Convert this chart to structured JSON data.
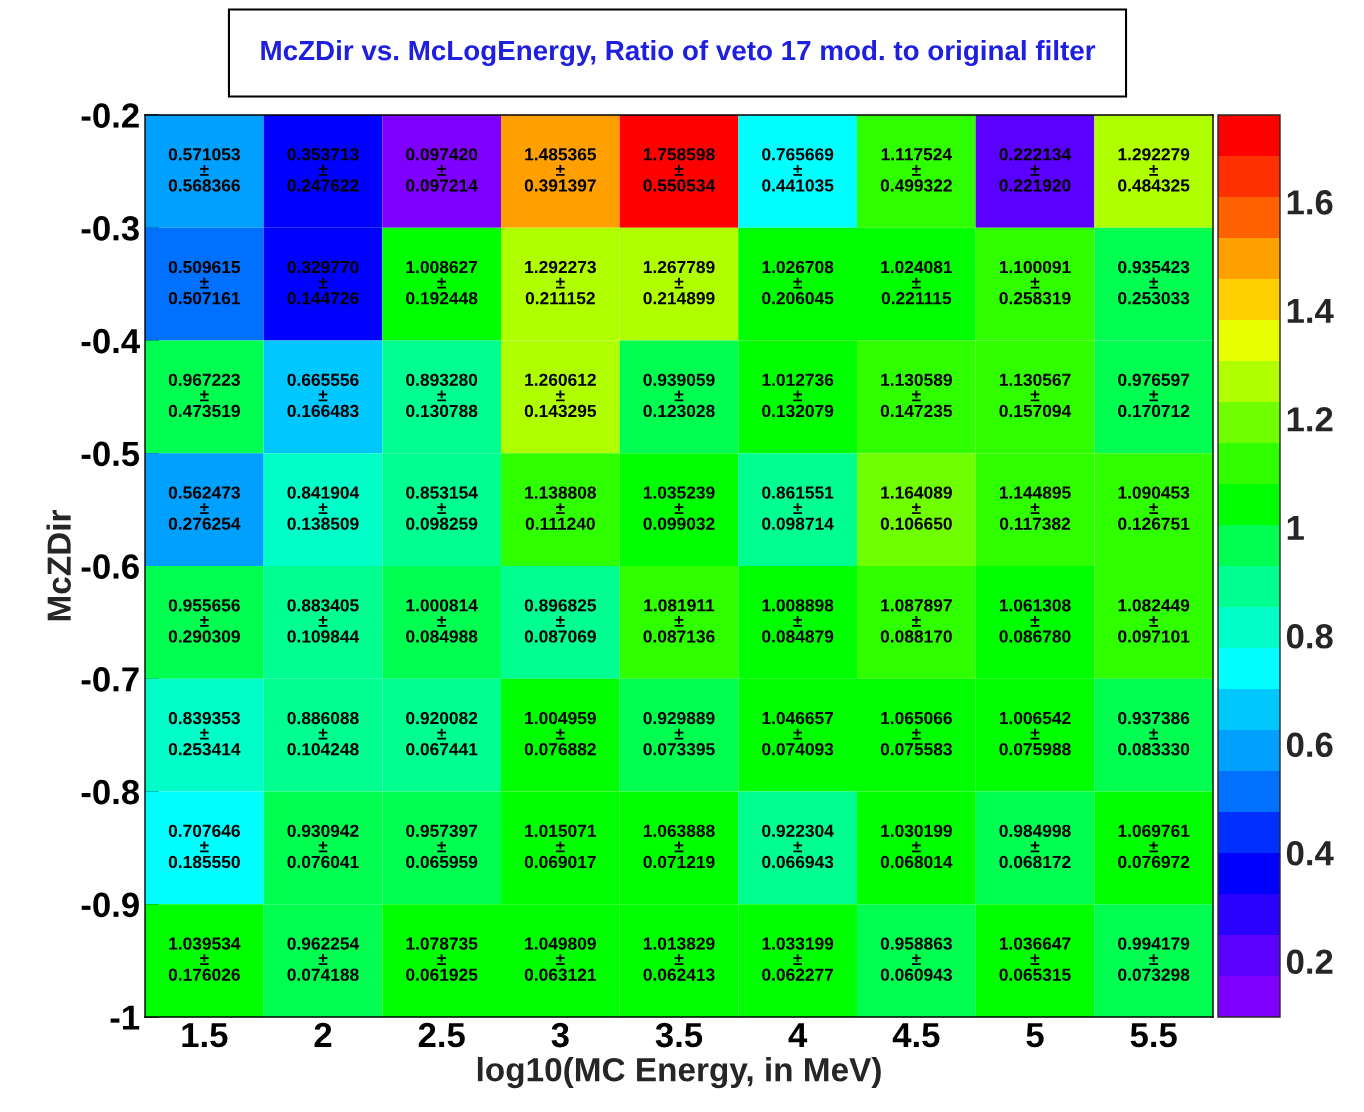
{
  "chart_data": {
    "type": "heatmap",
    "title": "McZDir vs. McLogEnergy, Ratio of veto 17 mod. to original filter",
    "xlabel": "log10(MC Energy, in MeV)",
    "ylabel": "McZDir",
    "x": [
      1.5,
      2,
      2.5,
      3,
      3.5,
      4,
      4.5,
      5,
      5.5
    ],
    "xlim": [
      1.25,
      5.75
    ],
    "xticks": [
      1.5,
      2,
      2.5,
      3,
      3.5,
      4,
      4.5,
      5,
      5.5
    ],
    "ylim": [
      -1,
      -0.2
    ],
    "yticks": [
      -1,
      -0.9,
      -0.8,
      -0.7,
      -0.6,
      -0.5,
      -0.4,
      -0.3,
      -0.2
    ],
    "clim": [
      0.097,
      1.76
    ],
    "cticks": [
      0.2,
      0.4,
      0.6,
      0.8,
      1,
      1.2,
      1.4,
      1.6
    ],
    "cells": [
      [
        0.571053,
        0.353713,
        0.09742,
        1.485365,
        1.758598,
        0.765669,
        1.117524,
        0.222134,
        1.292279
      ],
      [
        0.509615,
        0.32977,
        1.008627,
        1.292273,
        1.267789,
        1.026708,
        1.024081,
        1.100091,
        0.935423
      ],
      [
        0.967223,
        0.665556,
        0.89328,
        1.260612,
        0.939059,
        1.012736,
        1.130589,
        1.130567,
        0.976597
      ],
      [
        0.562473,
        0.841904,
        0.853154,
        1.138808,
        1.035239,
        0.861551,
        1.164089,
        1.144895,
        1.090453
      ],
      [
        0.955656,
        0.883405,
        1.000814,
        0.896825,
        1.081911,
        1.008898,
        1.087897,
        1.061308,
        1.082449
      ],
      [
        0.839353,
        0.886088,
        0.920082,
        1.004959,
        0.929889,
        1.046657,
        1.065066,
        1.006542,
        0.937386
      ],
      [
        0.707646,
        0.930942,
        0.957397,
        1.015071,
        1.063888,
        0.922304,
        1.030199,
        0.984998,
        1.069761
      ],
      [
        1.039534,
        0.962254,
        1.078735,
        1.049809,
        1.013829,
        1.033199,
        0.958863,
        1.036647,
        0.994179
      ]
    ],
    "cell_labels": [
      [
        "0.571053\n±\n0.568366",
        "0.353713\n±\n0.247622",
        "0.097420\n±\n0.097214",
        "1.485365\n±\n0.391397",
        "1.758598\n±\n0.550534",
        "0.765669\n±\n0.441035",
        "1.117524\n±\n0.499322",
        "0.222134\n±\n0.221920",
        "1.292279\n±\n0.484325"
      ],
      [
        "0.509615\n±\n0.507161",
        "0.329770\n±\n0.144726",
        "1.008627\n±\n0.192448",
        "1.292273\n±\n0.211152",
        "1.267789\n±\n0.214899",
        "1.026708\n±\n0.206045",
        "1.024081\n±\n0.221115",
        "1.100091\n±\n0.258319",
        "0.935423\n±\n0.253033"
      ],
      [
        "0.967223\n±\n0.473519",
        "0.665556\n±\n0.166483",
        "0.893280\n±\n0.130788",
        "1.260612\n±\n0.143295",
        "0.939059\n±\n0.123028",
        "1.012736\n±\n0.132079",
        "1.130589\n±\n0.147235",
        "1.130567\n±\n0.157094",
        "0.976597\n±\n0.170712"
      ],
      [
        "0.562473\n±\n0.276254",
        "0.841904\n±\n0.138509",
        "0.853154\n±\n0.098259",
        "1.138808\n±\n0.111240",
        "1.035239\n±\n0.099032",
        "0.861551\n±\n0.098714",
        "1.164089\n±\n0.106650",
        "1.144895\n±\n0.117382",
        "1.090453\n±\n0.126751"
      ],
      [
        "0.955656\n±\n0.290309",
        "0.883405\n±\n0.109844",
        "1.000814\n±\n0.084988",
        "0.896825\n±\n0.087069",
        "1.081911\n±\n0.087136",
        "1.008898\n±\n0.084879",
        "1.087897\n±\n0.088170",
        "1.061308\n±\n0.086780",
        "1.082449\n±\n0.097101"
      ],
      [
        "0.839353\n±\n0.253414",
        "0.886088\n±\n0.104248",
        "0.920082\n±\n0.067441",
        "1.004959\n±\n0.076882",
        "0.929889\n±\n0.073395",
        "1.046657\n±\n0.074093",
        "1.065066\n±\n0.075583",
        "1.006542\n±\n0.075988",
        "0.937386\n±\n0.083330"
      ],
      [
        "0.707646\n±\n0.185550",
        "0.930942\n±\n0.076041",
        "0.957397\n±\n0.065959",
        "1.015071\n±\n0.069017",
        "1.063888\n±\n0.071219",
        "0.922304\n±\n0.066943",
        "1.030199\n±\n0.068014",
        "0.984998\n±\n0.068172",
        "1.069761\n±\n0.076972"
      ],
      [
        "1.039534\n±\n0.176026",
        "0.962254\n±\n0.074188",
        "1.078735\n±\n0.061925",
        "1.049809\n±\n0.063121",
        "1.013829\n±\n0.062413",
        "1.033199\n±\n0.062277",
        "0.958863\n±\n0.060943",
        "1.036647\n±\n0.065315",
        "0.994179\n±\n0.073298"
      ]
    ]
  }
}
